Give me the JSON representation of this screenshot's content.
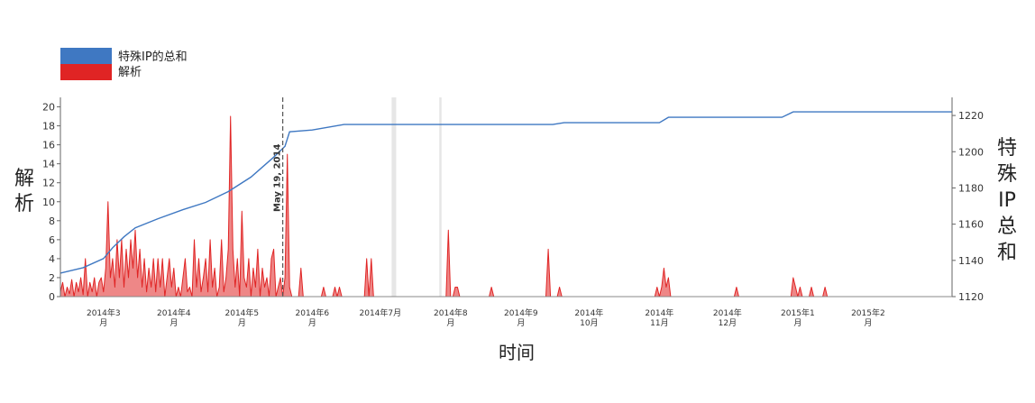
{
  "chart_data": {
    "type": "area",
    "title": "",
    "xlabel": "时间",
    "ylabel_left": "解析",
    "ylabel_right": [
      "特",
      "殊",
      "IP",
      "总",
      "和"
    ],
    "ylim_left": [
      0,
      21
    ],
    "ylim_right": [
      1120,
      1230
    ],
    "y_ticks_left": [
      0,
      2,
      4,
      6,
      8,
      10,
      12,
      14,
      16,
      18,
      20
    ],
    "y_ticks_right": [
      1120,
      1140,
      1160,
      1180,
      1200,
      1220
    ],
    "x_range": [
      "2014-02-10",
      "2015-03-10"
    ],
    "x_ticks": [
      {
        "date": "2014-03-01",
        "lines": [
          "2014年3",
          "月"
        ]
      },
      {
        "date": "2014-04-01",
        "lines": [
          "2014年4",
          "月"
        ]
      },
      {
        "date": "2014-05-01",
        "lines": [
          "2014年5",
          "月"
        ]
      },
      {
        "date": "2014-06-01",
        "lines": [
          "2014年6",
          "月"
        ]
      },
      {
        "date": "2014-07-01",
        "lines": [
          "2014年7月"
        ]
      },
      {
        "date": "2014-08-01",
        "lines": [
          "2014年8",
          "月"
        ]
      },
      {
        "date": "2014-09-01",
        "lines": [
          "2014年9",
          "月"
        ]
      },
      {
        "date": "2014-10-01",
        "lines": [
          "2014年",
          "10月"
        ]
      },
      {
        "date": "2014-11-01",
        "lines": [
          "2014年",
          "11月"
        ]
      },
      {
        "date": "2014-12-01",
        "lines": [
          "2014年",
          "12月"
        ]
      },
      {
        "date": "2015-01-01",
        "lines": [
          "2015年1",
          "月"
        ]
      },
      {
        "date": "2015-02-01",
        "lines": [
          "2015年2",
          "月"
        ]
      }
    ],
    "legend_position": "top-left",
    "grid": false,
    "annotations": [
      {
        "type": "vline",
        "date": "2014-05-19",
        "label": "May 19, 2014"
      }
    ],
    "shaded_bands": [
      {
        "start": "2014-07-06",
        "end": "2014-07-08"
      },
      {
        "start": "2014-07-27",
        "end": "2014-07-28"
      }
    ],
    "series": [
      {
        "name": "特殊IP的总和",
        "axis": "right",
        "kind": "line",
        "color": "#3f78c2",
        "points": [
          [
            "2014-02-10",
            1133
          ],
          [
            "2014-02-20",
            1136
          ],
          [
            "2014-03-01",
            1141
          ],
          [
            "2014-03-05",
            1147
          ],
          [
            "2014-03-10",
            1153
          ],
          [
            "2014-03-15",
            1158
          ],
          [
            "2014-03-25",
            1163
          ],
          [
            "2014-04-05",
            1168
          ],
          [
            "2014-04-15",
            1172
          ],
          [
            "2014-04-25",
            1178
          ],
          [
            "2014-05-05",
            1186
          ],
          [
            "2014-05-15",
            1197
          ],
          [
            "2014-05-20",
            1203
          ],
          [
            "2014-05-22",
            1211
          ],
          [
            "2014-06-01",
            1212
          ],
          [
            "2014-06-15",
            1215
          ],
          [
            "2014-07-15",
            1215
          ],
          [
            "2014-09-15",
            1215
          ],
          [
            "2014-09-20",
            1216
          ],
          [
            "2014-11-01",
            1216
          ],
          [
            "2014-11-05",
            1219
          ],
          [
            "2014-12-25",
            1219
          ],
          [
            "2014-12-30",
            1222
          ],
          [
            "2015-03-10",
            1222
          ]
        ]
      },
      {
        "name": "解析",
        "axis": "left",
        "kind": "area",
        "color": "#e02424",
        "points": [
          [
            "2014-02-10",
            0.5
          ],
          [
            "2014-02-11",
            1.5
          ],
          [
            "2014-02-12",
            0
          ],
          [
            "2014-02-13",
            1
          ],
          [
            "2014-02-14",
            0.3
          ],
          [
            "2014-02-15",
            1.8
          ],
          [
            "2014-02-16",
            0
          ],
          [
            "2014-02-17",
            1.5
          ],
          [
            "2014-02-18",
            0.5
          ],
          [
            "2014-02-19",
            2
          ],
          [
            "2014-02-20",
            0.2
          ],
          [
            "2014-02-21",
            4
          ],
          [
            "2014-02-22",
            0
          ],
          [
            "2014-02-23",
            1.5
          ],
          [
            "2014-02-24",
            0.5
          ],
          [
            "2014-02-25",
            2
          ],
          [
            "2014-02-26",
            0
          ],
          [
            "2014-02-27",
            1.5
          ],
          [
            "2014-02-28",
            2
          ],
          [
            "2014-03-01",
            0.5
          ],
          [
            "2014-03-02",
            3
          ],
          [
            "2014-03-03",
            10
          ],
          [
            "2014-03-04",
            2
          ],
          [
            "2014-03-05",
            4
          ],
          [
            "2014-03-06",
            1
          ],
          [
            "2014-03-07",
            6
          ],
          [
            "2014-03-08",
            2
          ],
          [
            "2014-03-09",
            6
          ],
          [
            "2014-03-10",
            1
          ],
          [
            "2014-03-11",
            5
          ],
          [
            "2014-03-12",
            2
          ],
          [
            "2014-03-13",
            6
          ],
          [
            "2014-03-14",
            3
          ],
          [
            "2014-03-15",
            7
          ],
          [
            "2014-03-16",
            2
          ],
          [
            "2014-03-17",
            5
          ],
          [
            "2014-03-18",
            1
          ],
          [
            "2014-03-19",
            4
          ],
          [
            "2014-03-20",
            0.5
          ],
          [
            "2014-03-21",
            3
          ],
          [
            "2014-03-22",
            1
          ],
          [
            "2014-03-23",
            4
          ],
          [
            "2014-03-24",
            0.5
          ],
          [
            "2014-03-25",
            4
          ],
          [
            "2014-03-26",
            1
          ],
          [
            "2014-03-27",
            4
          ],
          [
            "2014-03-28",
            0
          ],
          [
            "2014-03-29",
            2
          ],
          [
            "2014-03-30",
            4
          ],
          [
            "2014-03-31",
            1
          ],
          [
            "2014-04-01",
            3
          ],
          [
            "2014-04-02",
            0
          ],
          [
            "2014-04-03",
            1
          ],
          [
            "2014-04-04",
            0
          ],
          [
            "2014-04-05",
            2
          ],
          [
            "2014-04-06",
            4
          ],
          [
            "2014-04-07",
            0.5
          ],
          [
            "2014-04-08",
            1
          ],
          [
            "2014-04-09",
            0
          ],
          [
            "2014-04-10",
            6
          ],
          [
            "2014-04-11",
            1
          ],
          [
            "2014-04-12",
            4
          ],
          [
            "2014-04-13",
            0.5
          ],
          [
            "2014-04-14",
            2
          ],
          [
            "2014-04-15",
            4
          ],
          [
            "2014-04-16",
            0.5
          ],
          [
            "2014-04-17",
            6
          ],
          [
            "2014-04-18",
            1
          ],
          [
            "2014-04-19",
            3
          ],
          [
            "2014-04-20",
            0
          ],
          [
            "2014-04-21",
            1
          ],
          [
            "2014-04-22",
            6
          ],
          [
            "2014-04-23",
            0.5
          ],
          [
            "2014-04-24",
            2
          ],
          [
            "2014-04-25",
            5
          ],
          [
            "2014-04-26",
            19
          ],
          [
            "2014-04-27",
            5
          ],
          [
            "2014-04-28",
            1
          ],
          [
            "2014-04-29",
            4
          ],
          [
            "2014-04-30",
            0
          ],
          [
            "2014-05-01",
            9
          ],
          [
            "2014-05-02",
            2
          ],
          [
            "2014-05-03",
            1
          ],
          [
            "2014-05-04",
            4
          ],
          [
            "2014-05-05",
            0
          ],
          [
            "2014-05-06",
            3
          ],
          [
            "2014-05-07",
            1
          ],
          [
            "2014-05-08",
            5
          ],
          [
            "2014-05-09",
            0
          ],
          [
            "2014-05-10",
            3
          ],
          [
            "2014-05-11",
            1
          ],
          [
            "2014-05-12",
            2
          ],
          [
            "2014-05-13",
            0
          ],
          [
            "2014-05-14",
            4
          ],
          [
            "2014-05-15",
            5
          ],
          [
            "2014-05-16",
            0
          ],
          [
            "2014-05-17",
            1
          ],
          [
            "2014-05-18",
            2
          ],
          [
            "2014-05-19",
            0
          ],
          [
            "2014-05-20",
            2
          ],
          [
            "2014-05-21",
            15
          ],
          [
            "2014-05-22",
            1
          ],
          [
            "2014-05-23",
            0
          ],
          [
            "2014-05-26",
            0
          ],
          [
            "2014-05-27",
            3
          ],
          [
            "2014-05-28",
            0
          ],
          [
            "2014-06-05",
            0
          ],
          [
            "2014-06-06",
            1
          ],
          [
            "2014-06-07",
            0
          ],
          [
            "2014-06-10",
            0
          ],
          [
            "2014-06-11",
            1
          ],
          [
            "2014-06-12",
            0
          ],
          [
            "2014-06-13",
            1
          ],
          [
            "2014-06-14",
            0
          ],
          [
            "2014-06-24",
            0
          ],
          [
            "2014-06-25",
            4
          ],
          [
            "2014-06-26",
            0
          ],
          [
            "2014-06-27",
            4
          ],
          [
            "2014-06-28",
            0
          ],
          [
            "2014-07-30",
            0
          ],
          [
            "2014-07-31",
            7
          ],
          [
            "2014-08-01",
            0
          ],
          [
            "2014-08-02",
            0
          ],
          [
            "2014-08-03",
            1
          ],
          [
            "2014-08-04",
            1
          ],
          [
            "2014-08-05",
            0
          ],
          [
            "2014-08-18",
            0
          ],
          [
            "2014-08-19",
            1
          ],
          [
            "2014-08-20",
            0
          ],
          [
            "2014-09-12",
            0
          ],
          [
            "2014-09-13",
            5
          ],
          [
            "2014-09-14",
            0
          ],
          [
            "2014-09-17",
            0
          ],
          [
            "2014-09-18",
            1
          ],
          [
            "2014-09-19",
            0
          ],
          [
            "2014-10-30",
            0
          ],
          [
            "2014-10-31",
            1
          ],
          [
            "2014-11-01",
            0
          ],
          [
            "2014-11-02",
            1
          ],
          [
            "2014-11-03",
            3
          ],
          [
            "2014-11-04",
            1
          ],
          [
            "2014-11-05",
            2
          ],
          [
            "2014-11-06",
            0
          ],
          [
            "2014-12-04",
            0
          ],
          [
            "2014-12-05",
            1
          ],
          [
            "2014-12-06",
            0
          ],
          [
            "2014-12-29",
            0
          ],
          [
            "2014-12-30",
            2
          ],
          [
            "2014-12-31",
            1
          ],
          [
            "2015-01-01",
            0
          ],
          [
            "2015-01-02",
            1
          ],
          [
            "2015-01-03",
            0
          ],
          [
            "2015-01-06",
            0
          ],
          [
            "2015-01-07",
            1
          ],
          [
            "2015-01-08",
            0
          ],
          [
            "2015-01-12",
            0
          ],
          [
            "2015-01-13",
            1
          ],
          [
            "2015-01-14",
            0
          ],
          [
            "2015-03-10",
            0
          ]
        ]
      }
    ]
  }
}
